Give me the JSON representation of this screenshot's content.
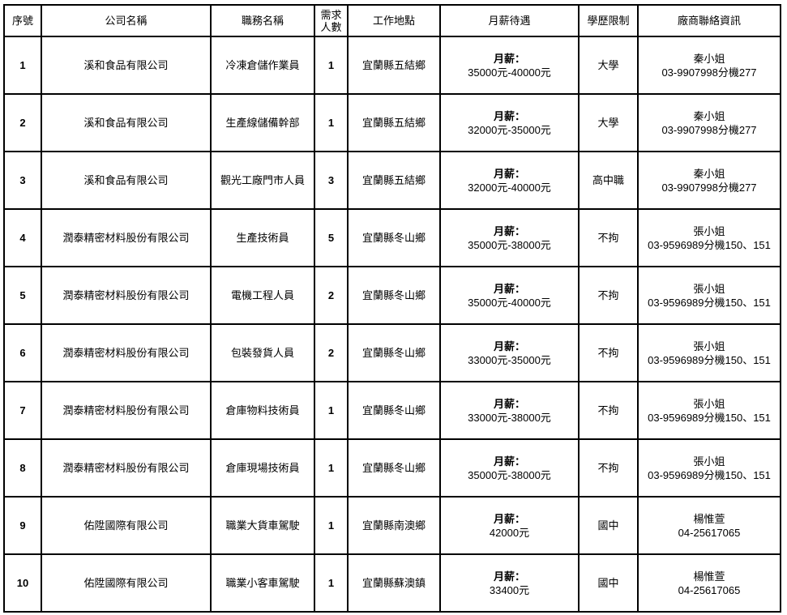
{
  "headers": [
    "序號",
    "公司名稱",
    "職務名稱",
    "需求人數",
    "工作地點",
    "月薪待遇",
    "學歷限制",
    "廠商聯絡資訊"
  ],
  "salary_label": "月薪：",
  "rows": [
    {
      "seq": "1",
      "company": "溪和食品有限公司",
      "job": "冷凍倉儲作業員",
      "count": "1",
      "location": "宜蘭縣五結鄉",
      "salary": "35000元-40000元",
      "education": "大學",
      "contact_name": "秦小姐",
      "contact_phone": "03-9907998分機277"
    },
    {
      "seq": "2",
      "company": "溪和食品有限公司",
      "job": "生產線儲備幹部",
      "count": "1",
      "location": "宜蘭縣五結鄉",
      "salary": "32000元-35000元",
      "education": "大學",
      "contact_name": "秦小姐",
      "contact_phone": "03-9907998分機277"
    },
    {
      "seq": "3",
      "company": "溪和食品有限公司",
      "job": "觀光工廠門市人員",
      "count": "3",
      "location": "宜蘭縣五結鄉",
      "salary": "32000元-40000元",
      "education": "高中職",
      "contact_name": "秦小姐",
      "contact_phone": "03-9907998分機277"
    },
    {
      "seq": "4",
      "company": "潤泰精密材料股份有限公司",
      "job": "生產技術員",
      "count": "5",
      "location": "宜蘭縣冬山鄉",
      "salary": "35000元-38000元",
      "education": "不拘",
      "contact_name": "張小姐",
      "contact_phone": "03-9596989分機150、151"
    },
    {
      "seq": "5",
      "company": "潤泰精密材料股份有限公司",
      "job": "電機工程人員",
      "count": "2",
      "location": "宜蘭縣冬山鄉",
      "salary": "35000元-40000元",
      "education": "不拘",
      "contact_name": "張小姐",
      "contact_phone": "03-9596989分機150、151"
    },
    {
      "seq": "6",
      "company": "潤泰精密材料股份有限公司",
      "job": "包裝發貨人員",
      "count": "2",
      "location": "宜蘭縣冬山鄉",
      "salary": "33000元-35000元",
      "education": "不拘",
      "contact_name": "張小姐",
      "contact_phone": "03-9596989分機150、151"
    },
    {
      "seq": "7",
      "company": "潤泰精密材料股份有限公司",
      "job": "倉庫物料技術員",
      "count": "1",
      "location": "宜蘭縣冬山鄉",
      "salary": "33000元-38000元",
      "education": "不拘",
      "contact_name": "張小姐",
      "contact_phone": "03-9596989分機150、151"
    },
    {
      "seq": "8",
      "company": "潤泰精密材料股份有限公司",
      "job": "倉庫現場技術員",
      "count": "1",
      "location": "宜蘭縣冬山鄉",
      "salary": "35000元-38000元",
      "education": "不拘",
      "contact_name": "張小姐",
      "contact_phone": "03-9596989分機150、151"
    },
    {
      "seq": "9",
      "company": "佑陞國際有限公司",
      "job": "職業大貨車駕駛",
      "count": "1",
      "location": "宜蘭縣南澳鄉",
      "salary": "42000元",
      "education": "國中",
      "contact_name": "楊惟萱",
      "contact_phone": "04-25617065"
    },
    {
      "seq": "10",
      "company": "佑陞國際有限公司",
      "job": "職業小客車駕駛",
      "count": "1",
      "location": "宜蘭縣蘇澳鎮",
      "salary": "33400元",
      "education": "國中",
      "contact_name": "楊惟萱",
      "contact_phone": "04-25617065"
    }
  ]
}
